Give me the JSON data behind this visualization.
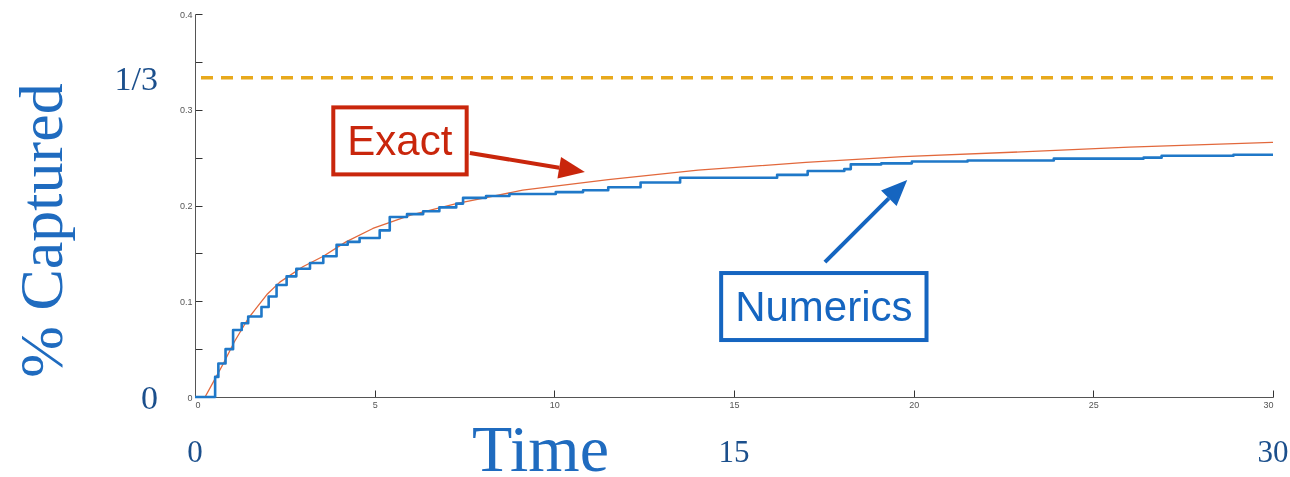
{
  "chart_data": {
    "type": "line",
    "xlabel": "Time",
    "y2label": "% Captured",
    "xlim": [
      0,
      30
    ],
    "xticks": [
      0,
      5,
      10,
      15,
      20,
      25,
      30
    ],
    "ylim": [
      0,
      0.4
    ],
    "yticks": [
      0,
      {
        "value": 0.05,
        "label": null
      },
      0.1,
      {
        "value": 0.15,
        "label": null
      },
      0.2,
      {
        "value": 0.25,
        "label": null
      },
      0.3,
      {
        "value": 0.35,
        "label": null
      },
      0.4
    ],
    "x2lim": [
      0,
      30
    ],
    "x2ticks": [
      0,
      15,
      30
    ],
    "y2lim": [
      0,
      0.4
    ],
    "y2ticks": [
      0,
      {
        "value": 0.3333,
        "label": "1/3"
      }
    ],
    "grid": false,
    "ref_lines": [
      {
        "axis": "y",
        "value": 0.3333,
        "color": "#e8a91c",
        "line_style": "dashed"
      }
    ],
    "series": [
      {
        "name": "Exact",
        "color": "#e2683c",
        "x": [
          0,
          0.28,
          0.5,
          0.79,
          1.1,
          1.48,
          2,
          2.36,
          3,
          3.57,
          4.2,
          4.95,
          6,
          7.27,
          9.12,
          11.5,
          14,
          17,
          19.7,
          23,
          26,
          30
        ],
        "values": [
          0,
          0,
          0.015,
          0.035,
          0.058,
          0.082,
          0.107,
          0.12,
          0.136,
          0.147,
          0.162,
          0.176,
          0.19,
          0.202,
          0.216,
          0.227,
          0.237,
          0.245,
          0.251,
          0.256,
          0.261,
          0.266
        ]
      },
      {
        "name": "Numerics",
        "type": "step",
        "color": "#1f78c8",
        "x": [
          0,
          0.3,
          0.56,
          0.65,
          0.85,
          1.06,
          1.3,
          1.48,
          1.85,
          2.05,
          2.27,
          2.55,
          2.82,
          3.2,
          3.57,
          3.94,
          4.25,
          4.58,
          5.14,
          5.42,
          5.9,
          6.35,
          6.8,
          7.27,
          7.46,
          8.1,
          8.75,
          10.04,
          10.8,
          11.5,
          12.4,
          13.5,
          15.35,
          16.2,
          17.05,
          18.07,
          18.25,
          19.1,
          19.95,
          21.5,
          23.9,
          26.4,
          26.9,
          28.9,
          30
        ],
        "values": [
          0,
          0,
          0.021,
          0.035,
          0.05,
          0.07,
          0.077,
          0.084,
          0.094,
          0.105,
          0.117,
          0.126,
          0.134,
          0.14,
          0.147,
          0.159,
          0.162,
          0.166,
          0.174,
          0.188,
          0.191,
          0.194,
          0.198,
          0.202,
          0.208,
          0.21,
          0.212,
          0.214,
          0.216,
          0.219,
          0.224,
          0.229,
          0.229,
          0.232,
          0.236,
          0.238,
          0.243,
          0.244,
          0.246,
          0.247,
          0.249,
          0.25,
          0.252,
          0.253,
          0.253
        ]
      }
    ]
  }
}
